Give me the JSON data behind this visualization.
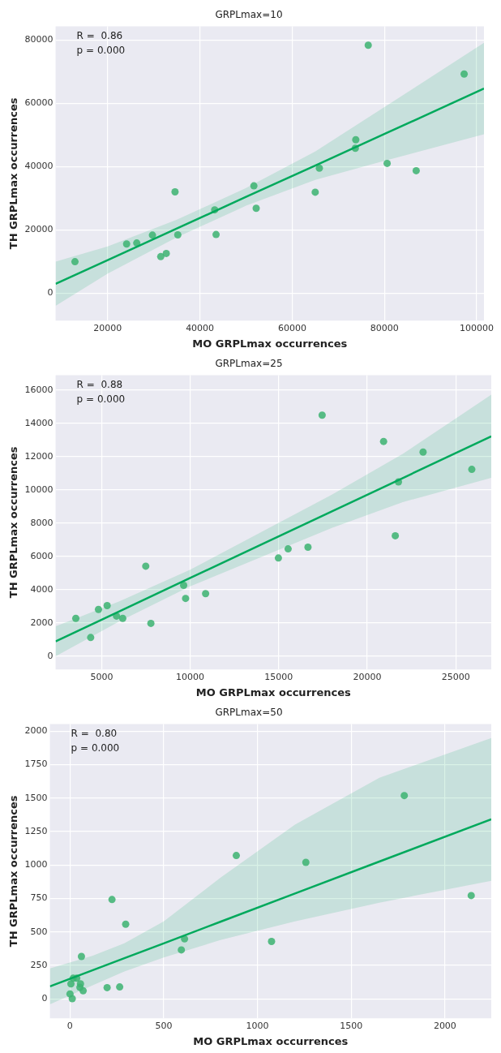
{
  "chart_data": [
    {
      "type": "scatter",
      "title": "GRPLmax=10",
      "xlabel": "MO GRPLmax occurrences",
      "ylabel": "TH GRPLmax occurrences",
      "annotations": [
        "R =  0.86",
        "p = 0.000"
      ],
      "grid": true,
      "xlim": [
        8700,
        101600
      ],
      "xticks": [
        20000,
        40000,
        60000,
        80000,
        100000
      ],
      "ylim": [
        -8750,
        84400
      ],
      "yticks": [
        0,
        20000,
        40000,
        60000,
        80000
      ],
      "series": [
        {
          "marker": "circle",
          "color": "#3cb371",
          "x": [
            12900,
            24100,
            26300,
            29700,
            31500,
            32700,
            34600,
            35200,
            43200,
            43500,
            51700,
            52200,
            65000,
            65900,
            73700,
            73800,
            76500,
            80600,
            86900,
            97300
          ],
          "values": [
            9900,
            15500,
            15800,
            18300,
            11500,
            12500,
            32000,
            18400,
            26300,
            18500,
            33900,
            26800,
            31900,
            39500,
            45800,
            48500,
            78400,
            41000,
            38700,
            69300
          ]
        },
        {
          "type": "line",
          "color": "#00a95c",
          "x": [
            8700,
            20000,
            35000,
            50000,
            65000,
            80000,
            101600
          ],
          "values": [
            2900,
            10400,
            20400,
            30400,
            40300,
            50300,
            64700
          ],
          "lower": [
            -4100,
            6100,
            17600,
            27600,
            35800,
            41800,
            50200
          ],
          "upper": [
            9900,
            14700,
            23200,
            33200,
            44800,
            58800,
            79200
          ]
        }
      ]
    },
    {
      "type": "scatter",
      "title": "GRPLmax=25",
      "xlabel": "MO GRPLmax occurrences",
      "ylabel": "TH GRPLmax occurrences",
      "annotations": [
        "R =  0.88",
        "p = 0.000"
      ],
      "grid": true,
      "xlim": [
        2400,
        27000
      ],
      "xticks": [
        5000,
        10000,
        15000,
        20000,
        25000
      ],
      "ylim": [
        -800,
        16900
      ],
      "yticks": [
        0,
        2000,
        4000,
        6000,
        8000,
        10000,
        12000,
        14000,
        16000
      ],
      "series": [
        {
          "marker": "circle",
          "color": "#3cb371",
          "x": [
            3540,
            4380,
            4820,
            5310,
            5840,
            6190,
            7490,
            7780,
            9630,
            9740,
            10870,
            14980,
            15530,
            16650,
            17450,
            20920,
            21580,
            21760,
            23150,
            25900
          ],
          "values": [
            2270,
            1120,
            2810,
            3040,
            2410,
            2270,
            5410,
            1970,
            4260,
            3470,
            3760,
            5900,
            6450,
            6550,
            14490,
            12910,
            7240,
            10480,
            12270,
            11230
          ]
        },
        {
          "type": "line",
          "color": "#00a95c",
          "x": [
            2400,
            6000,
            10000,
            14000,
            18000,
            22000,
            27000
          ],
          "values": [
            890,
            2690,
            4700,
            6700,
            8710,
            10710,
            13220
          ],
          "lower": [
            -10,
            2090,
            4200,
            5950,
            7710,
            9260,
            10720
          ],
          "upper": [
            1790,
            3290,
            5200,
            7450,
            9710,
            12160,
            15720
          ]
        }
      ]
    },
    {
      "type": "scatter",
      "title": "GRPLmax=50",
      "xlabel": "MO GRPLmax occurrences",
      "ylabel": "TH GRPLmax occurrences",
      "annotations": [
        "R =  0.80",
        "p = 0.000"
      ],
      "grid": true,
      "xlim": [
        -107,
        2247
      ],
      "xticks": [
        0,
        500,
        1000,
        1500,
        2000
      ],
      "ylim": [
        -145,
        2054
      ],
      "yticks": [
        0,
        250,
        500,
        750,
        1000,
        1250,
        1500,
        1750,
        2000
      ],
      "series": [
        {
          "marker": "circle",
          "color": "#3cb371",
          "x": [
            61,
            17,
            36,
            5,
            56,
            53,
            70,
            0,
            12,
            198,
            265,
            224,
            297,
            594,
            611,
            887,
            1075,
            1258,
            1783,
            2140
          ],
          "values": [
            317,
            154,
            154,
            112,
            112,
            86,
            61,
            37,
            2,
            84,
            89,
            742,
            558,
            366,
            448,
            1071,
            429,
            1020,
            1519,
            772
          ]
        },
        {
          "type": "line",
          "color": "#00a95c",
          "x": [
            -107,
            119,
            290,
            500,
            802,
            1200,
            1650,
            2247
          ],
          "values": [
            93,
            213,
            304,
            415,
            576,
            787,
            1026,
            1342
          ],
          "lower": [
            -40,
            100,
            205,
            310,
            439,
            579,
            719,
            882
          ],
          "upper": [
            228,
            322,
            415,
            579,
            905,
            1302,
            1652,
            1949
          ]
        }
      ]
    }
  ]
}
